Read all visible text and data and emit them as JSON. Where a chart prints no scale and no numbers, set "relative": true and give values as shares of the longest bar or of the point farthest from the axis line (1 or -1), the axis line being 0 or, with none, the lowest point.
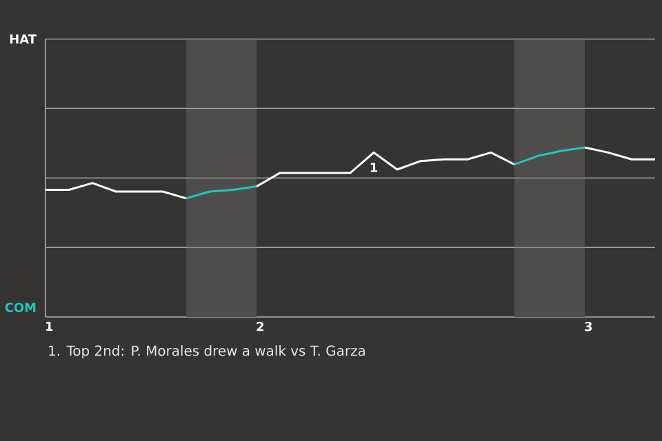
{
  "chart_data": {
    "type": "line",
    "categories": [
      "1",
      null,
      null,
      null,
      null,
      null,
      null,
      null,
      null,
      "2",
      null,
      null,
      null,
      null,
      null,
      null,
      null,
      null,
      null,
      null,
      null,
      null,
      null,
      "3",
      null,
      null,
      null
    ],
    "relative": true,
    "series": [
      {
        "color": "#ffffff",
        "values": [
          0.75,
          0.75,
          0.79,
          0.74,
          0.74,
          0.74,
          0.7,
          null,
          null,
          0.77,
          0.85,
          0.85,
          0.85,
          0.85,
          0.97,
          0.87,
          0.92,
          0.93,
          0.93,
          0.97,
          0.9,
          null,
          null,
          1,
          0.97,
          0.93,
          0.93
        ]
      },
      {
        "color": "#1ec8c0",
        "values": [
          null,
          null,
          null,
          null,
          null,
          null,
          0.7,
          0.74,
          0.75,
          0.77,
          null,
          null,
          null,
          null,
          null,
          null,
          null,
          null,
          null,
          null,
          0.9,
          0.95,
          0.98,
          1,
          null,
          null,
          null
        ]
      }
    ],
    "grid": "y",
    "marker": "none",
    "line_style": "solid",
    "annotations": [
      "HAT",
      "COM",
      "1",
      "1. Top 2nd: P. Morales drew a walk vs T. Garza"
    ]
  }
}
